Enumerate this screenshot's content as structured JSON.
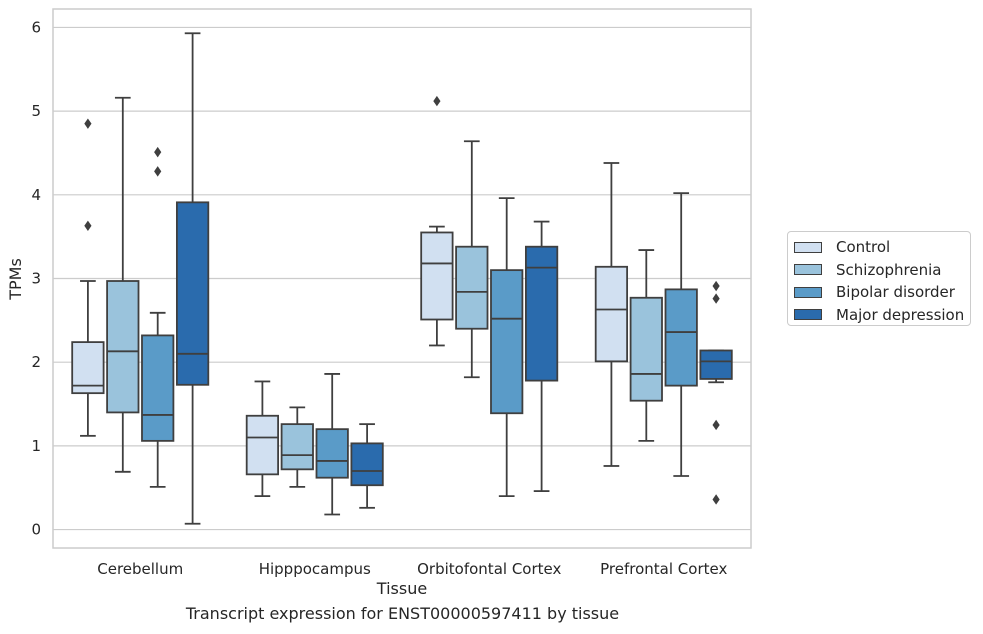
{
  "caption": "Transcript expression for ENST00000597411 by tissue",
  "chart_data": {
    "type": "boxplot",
    "xlabel": "Tissue",
    "ylabel": "TPMs",
    "ylim": [
      -0.22,
      6.22
    ],
    "yticks": [
      0,
      1,
      2,
      3,
      4,
      5,
      6
    ],
    "grid": "horizontal",
    "legend_position": "right",
    "categories": [
      "Cerebellum",
      "Hipppocampus",
      "Orbitofontal Cortex",
      "Prefrontal Cortex"
    ],
    "series": [
      {
        "name": "Control",
        "color": "#d1e0f1",
        "boxes": [
          {
            "whisker_low": 1.12,
            "q1": 1.63,
            "median": 1.72,
            "q3": 2.24,
            "whisker_high": 2.97,
            "outliers": [
              3.63,
              4.85
            ]
          },
          {
            "whisker_low": 0.4,
            "q1": 0.66,
            "median": 1.1,
            "q3": 1.36,
            "whisker_high": 1.77,
            "outliers": []
          },
          {
            "whisker_low": 2.2,
            "q1": 2.51,
            "median": 3.18,
            "q3": 3.55,
            "whisker_high": 3.62,
            "outliers": [
              5.12
            ]
          },
          {
            "whisker_low": 0.76,
            "q1": 2.01,
            "median": 2.63,
            "q3": 3.14,
            "whisker_high": 4.38,
            "outliers": []
          }
        ]
      },
      {
        "name": "Schizophrenia",
        "color": "#9ac3dc",
        "boxes": [
          {
            "whisker_low": 0.69,
            "q1": 1.4,
            "median": 2.13,
            "q3": 2.97,
            "whisker_high": 5.16,
            "outliers": []
          },
          {
            "whisker_low": 0.51,
            "q1": 0.72,
            "median": 0.89,
            "q3": 1.26,
            "whisker_high": 1.46,
            "outliers": []
          },
          {
            "whisker_low": 1.82,
            "q1": 2.4,
            "median": 2.84,
            "q3": 3.38,
            "whisker_high": 4.64,
            "outliers": []
          },
          {
            "whisker_low": 1.06,
            "q1": 1.54,
            "median": 1.86,
            "q3": 2.77,
            "whisker_high": 3.34,
            "outliers": []
          }
        ]
      },
      {
        "name": "Bipolar disorder",
        "color": "#5a9bc8",
        "boxes": [
          {
            "whisker_low": 0.51,
            "q1": 1.06,
            "median": 1.37,
            "q3": 2.32,
            "whisker_high": 2.59,
            "outliers": [
              4.28,
              4.51
            ]
          },
          {
            "whisker_low": 0.18,
            "q1": 0.62,
            "median": 0.82,
            "q3": 1.2,
            "whisker_high": 1.86,
            "outliers": []
          },
          {
            "whisker_low": 0.4,
            "q1": 1.39,
            "median": 2.52,
            "q3": 3.1,
            "whisker_high": 3.96,
            "outliers": []
          },
          {
            "whisker_low": 0.64,
            "q1": 1.72,
            "median": 2.36,
            "q3": 2.87,
            "whisker_high": 4.02,
            "outliers": []
          }
        ]
      },
      {
        "name": "Major depression",
        "color": "#2a6bad",
        "boxes": [
          {
            "whisker_low": 0.07,
            "q1": 1.73,
            "median": 2.1,
            "q3": 3.91,
            "whisker_high": 5.93,
            "outliers": []
          },
          {
            "whisker_low": 0.26,
            "q1": 0.53,
            "median": 0.7,
            "q3": 1.03,
            "whisker_high": 1.26,
            "outliers": []
          },
          {
            "whisker_low": 0.46,
            "q1": 1.78,
            "median": 3.13,
            "q3": 3.38,
            "whisker_high": 3.68,
            "outliers": []
          },
          {
            "whisker_low": 1.76,
            "q1": 1.8,
            "median": 2.01,
            "q3": 2.14,
            "whisker_high": 2.14,
            "outliers": [
              0.36,
              1.25,
              2.76,
              2.91
            ]
          }
        ]
      }
    ]
  }
}
